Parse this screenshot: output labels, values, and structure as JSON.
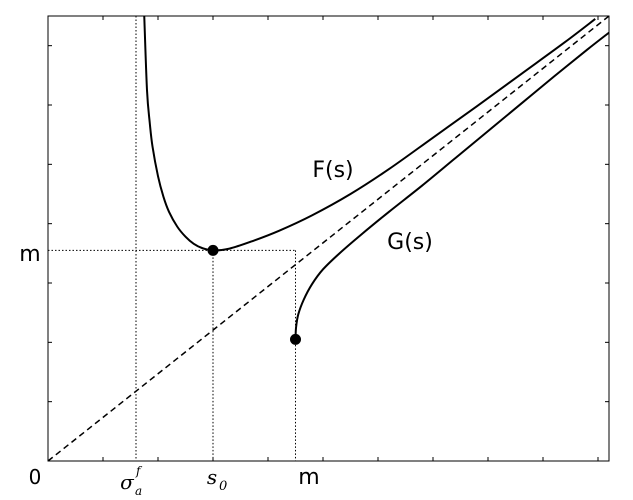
{
  "chart_data": {
    "type": "line",
    "title": "",
    "xlabel": "",
    "ylabel": "",
    "xlim": [
      0,
      10.2
    ],
    "ylim": [
      0,
      7.5
    ],
    "grid": false,
    "legend": "none",
    "axis_labels": {
      "origin": "0",
      "y_m": "m",
      "x_m": "m",
      "x_sigma_base": "σ",
      "x_sigma_sub": "a",
      "x_sigma_sup": "f",
      "x_s0_base": "s",
      "x_s0_sub": "0"
    },
    "reference_values": {
      "sigma_a_f": 1.6,
      "s0": 3.0,
      "m": 4.5
    },
    "diagonal": {
      "label": "",
      "x": [
        0,
        10.2
      ],
      "y": [
        0,
        7.5
      ],
      "style": "dashed"
    },
    "series": [
      {
        "name": "F(s)",
        "label": "F(s)",
        "x": [
          1.75,
          1.8,
          1.85,
          1.9,
          2.0,
          2.1,
          2.2,
          2.35,
          2.5,
          2.65,
          2.8,
          3.0,
          3.3,
          3.7,
          4.2,
          4.8,
          5.5,
          6.2,
          7.0,
          7.8,
          8.6,
          9.4,
          9.95
        ],
        "y": [
          7.5,
          6.25,
          5.7,
          5.3,
          4.8,
          4.45,
          4.2,
          3.95,
          3.78,
          3.66,
          3.59,
          3.55,
          3.58,
          3.7,
          3.88,
          4.14,
          4.5,
          4.92,
          5.45,
          5.98,
          6.52,
          7.06,
          7.45
        ],
        "color": "#000000"
      },
      {
        "name": "G(s)",
        "label": "G(s)",
        "x": [
          4.5,
          4.51,
          4.55,
          4.65,
          4.8,
          5.0,
          5.3,
          5.7,
          6.2,
          6.8,
          7.4,
          8.0,
          8.6,
          9.2,
          9.8,
          10.2
        ],
        "y": [
          2.05,
          2.25,
          2.47,
          2.72,
          2.98,
          3.23,
          3.5,
          3.82,
          4.2,
          4.64,
          5.1,
          5.56,
          6.02,
          6.48,
          6.93,
          7.22
        ],
        "color": "#000000"
      }
    ],
    "points": [
      {
        "x": 3.0,
        "y": 3.55
      },
      {
        "x": 4.5,
        "y": 2.05
      }
    ]
  }
}
